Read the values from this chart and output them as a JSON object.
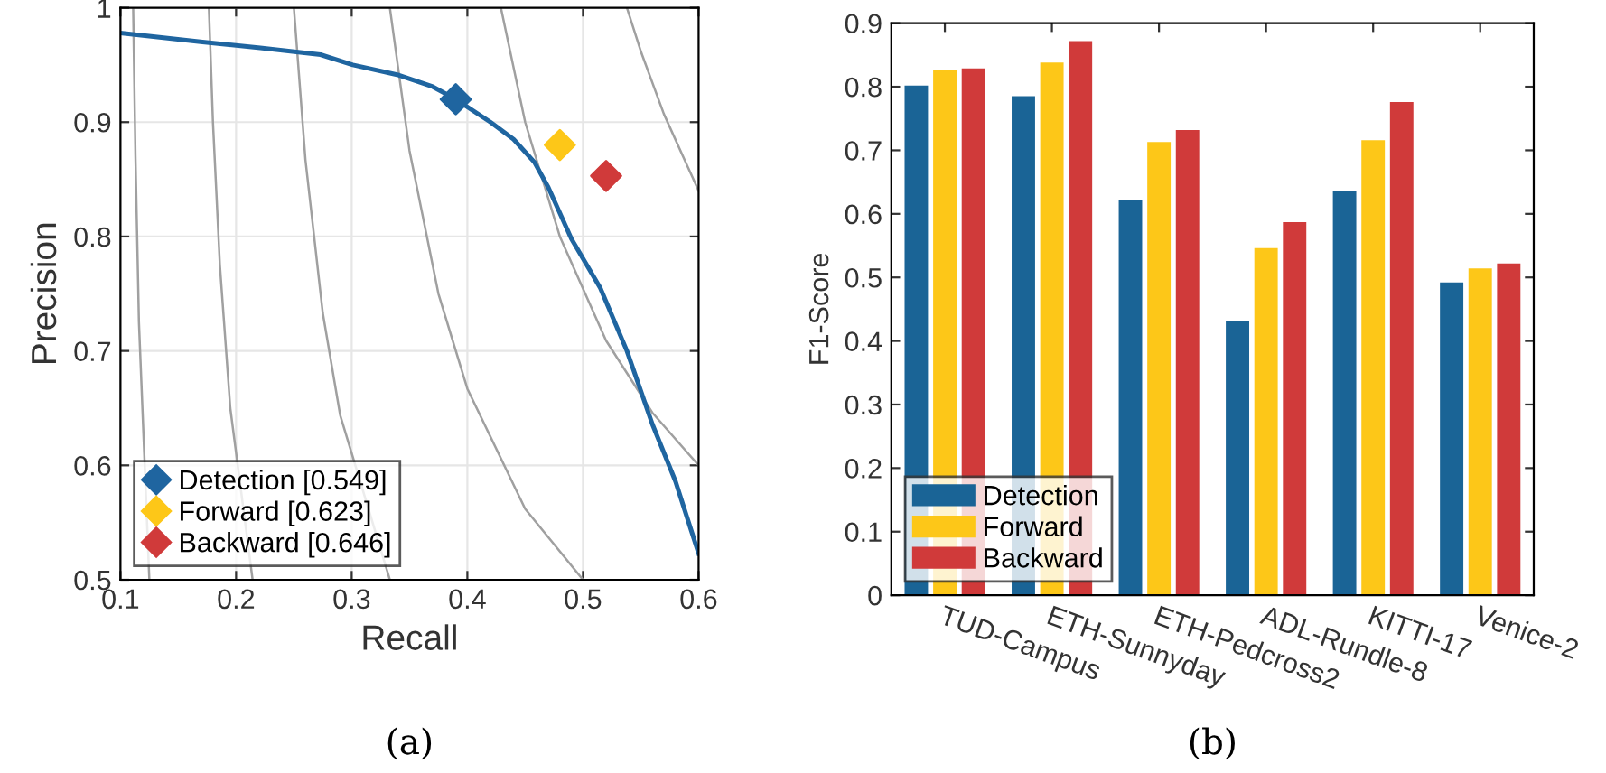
{
  "chart_data": [
    {
      "type": "line",
      "xlabel": "Recall",
      "ylabel": "Precision",
      "xlim": [
        0.1,
        0.6
      ],
      "ylim": [
        0.5,
        1
      ],
      "xticks": [
        0.1,
        0.2,
        0.3,
        0.4,
        0.5,
        0.6
      ],
      "yticks": [
        0.5,
        0.6,
        0.7,
        0.8,
        0.9,
        1
      ],
      "grid": true,
      "legend": "bottom left",
      "annotations": [
        "(a)"
      ],
      "series": [
        {
          "type": "line",
          "color": "#a0a0a0",
          "x": [
            0.111,
            0.113,
            0.116,
            0.125
          ],
          "values": [
            1.0,
            0.87,
            0.725,
            0.5
          ]
        },
        {
          "type": "line",
          "color": "#a0a0a0",
          "x": [
            0.1765,
            0.18,
            0.186,
            0.195,
            0.2143
          ],
          "values": [
            1.0,
            0.9,
            0.775,
            0.65,
            0.5
          ]
        },
        {
          "type": "line",
          "color": "#a0a0a0",
          "x": [
            0.25,
            0.26,
            0.275,
            0.29,
            0.333
          ],
          "values": [
            1.0,
            0.867,
            0.733,
            0.644,
            0.5
          ]
        },
        {
          "type": "line",
          "color": "#a0a0a0",
          "x": [
            0.333,
            0.35,
            0.375,
            0.4,
            0.45,
            0.5
          ],
          "values": [
            1.0,
            0.875,
            0.75,
            0.667,
            0.562,
            0.5
          ]
        },
        {
          "type": "line",
          "color": "#a0a0a0",
          "x": [
            0.429,
            0.45,
            0.48,
            0.52,
            0.56,
            0.6
          ],
          "values": [
            1.0,
            0.9,
            0.8,
            0.709,
            0.646,
            0.6
          ]
        },
        {
          "type": "line",
          "color": "#a0a0a0",
          "x": [
            0.538,
            0.55,
            0.57,
            0.6
          ],
          "values": [
            1.0,
            0.962,
            0.907,
            0.84
          ]
        },
        {
          "type": "line",
          "color": "#1f65a0",
          "x": [
            0.1,
            0.171,
            0.221,
            0.273,
            0.301,
            0.341,
            0.37,
            0.39,
            0.42,
            0.44,
            0.458,
            0.47,
            0.49,
            0.515,
            0.538,
            0.56,
            0.58,
            0.6
          ],
          "values": [
            0.978,
            0.97,
            0.965,
            0.959,
            0.95,
            0.941,
            0.931,
            0.92,
            0.9,
            0.885,
            0.865,
            0.843,
            0.798,
            0.755,
            0.7,
            0.636,
            0.586,
            0.523
          ]
        },
        {
          "type": "scatter",
          "marker": "diamond",
          "name": "Detection [0.549]",
          "color": "#1f65a0",
          "x": [
            0.39
          ],
          "values": [
            0.92
          ]
        },
        {
          "type": "scatter",
          "marker": "diamond",
          "name": "Forward [0.623]",
          "color": "#fdc718",
          "x": [
            0.48
          ],
          "values": [
            0.88
          ]
        },
        {
          "type": "scatter",
          "marker": "diamond",
          "name": "Backward [0.646]",
          "color": "#d03a3a",
          "x": [
            0.52
          ],
          "values": [
            0.853
          ]
        }
      ]
    },
    {
      "type": "bar",
      "ylabel": "F1-Score",
      "ylim": [
        0,
        0.9
      ],
      "yticks": [
        0,
        0.1,
        0.2,
        0.3,
        0.4,
        0.5,
        0.6,
        0.7,
        0.8,
        0.9
      ],
      "grid": false,
      "legend": "bottom left",
      "annotations": [
        "(b)"
      ],
      "categories": [
        "TUD-Campus",
        "ETH-Sunnyday",
        "ETH-Pedcross2",
        "ADL-Rundle-8",
        "KITTI-17",
        "Venice-2"
      ],
      "series": [
        {
          "name": "Detection",
          "color": "#1a6496",
          "values": [
            0.802,
            0.785,
            0.622,
            0.431,
            0.636,
            0.492
          ]
        },
        {
          "name": "Forward",
          "color": "#fdc718",
          "values": [
            0.827,
            0.838,
            0.713,
            0.546,
            0.716,
            0.514
          ]
        },
        {
          "name": "Backward",
          "color": "#d03a3a",
          "values": [
            0.829,
            0.872,
            0.732,
            0.587,
            0.776,
            0.522
          ]
        }
      ]
    }
  ]
}
